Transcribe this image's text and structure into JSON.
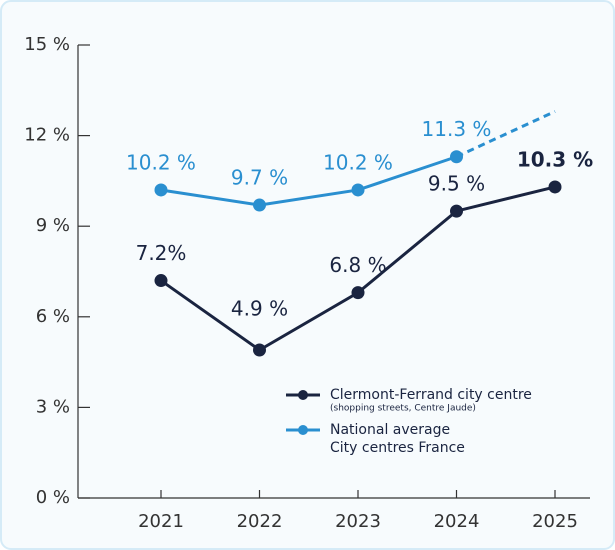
{
  "chart_data": {
    "type": "line",
    "x": [
      "2021",
      "2022",
      "2023",
      "2024",
      "2025"
    ],
    "series": [
      {
        "name": "Clermont-Ferrand city centre",
        "subname": "(shopping streets, Centre Jaude)",
        "color": "#1a2440",
        "values": [
          7.2,
          4.9,
          6.8,
          9.5,
          10.3
        ],
        "value_labels": [
          "7.2%",
          "4.9 %",
          "6.8 %",
          "9.5 %",
          "10.3 %"
        ]
      },
      {
        "name": "National average",
        "subname": "City centres France",
        "color": "#2a8fd0",
        "values": [
          10.2,
          9.7,
          10.2,
          11.3,
          12.8
        ],
        "value_labels": [
          "10.2 %",
          "9.7 %",
          "10.2 %",
          "11.3 %",
          null
        ],
        "projection_from": 3
      }
    ],
    "ylim": [
      0,
      15
    ],
    "yticks": [
      {
        "value": 0,
        "label": "0 %"
      },
      {
        "value": 3,
        "label": "3 %"
      },
      {
        "value": 6,
        "label": "6 %"
      },
      {
        "value": 9,
        "label": "9 %"
      },
      {
        "value": 12,
        "label": "12 %"
      },
      {
        "value": 15,
        "label": "15 %"
      }
    ],
    "grid": false
  }
}
